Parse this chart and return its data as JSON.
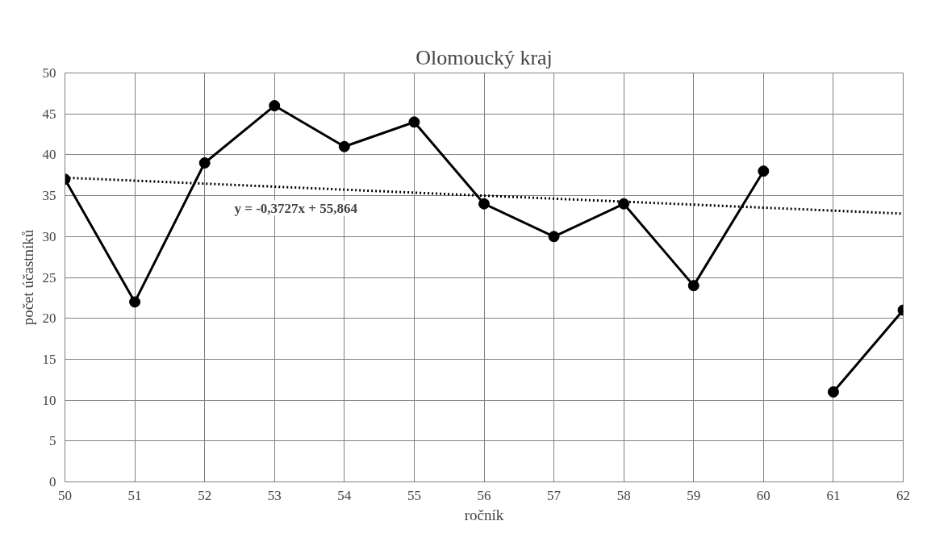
{
  "chart_data": {
    "type": "line",
    "title": "Olomoucký kraj",
    "xlabel": "ročník",
    "ylabel": "počet účastníků",
    "xlim": [
      50,
      62
    ],
    "xticks": [
      50,
      51,
      52,
      53,
      54,
      55,
      56,
      57,
      58,
      59,
      60,
      61,
      62
    ],
    "ylim": [
      0,
      50
    ],
    "yticks": [
      0,
      5,
      10,
      15,
      20,
      25,
      30,
      35,
      40,
      45,
      50
    ],
    "grid": true,
    "marker": "circle",
    "series": [
      {
        "color": "#000000",
        "x": [
          50,
          51,
          52,
          53,
          54,
          55,
          56,
          57,
          58,
          59,
          60
        ],
        "values": [
          37,
          22,
          39,
          46,
          41,
          44,
          34,
          30,
          34,
          24,
          38
        ]
      },
      {
        "color": "#000000",
        "x": [
          61,
          62
        ],
        "values": [
          11,
          21
        ]
      },
      {
        "type": "line",
        "color": "#000000",
        "marker": "none",
        "line_style": "dotted",
        "x": [
          50,
          62
        ],
        "values": [
          37.2,
          32.8
        ]
      }
    ],
    "annotations": [
      "y = -0,3727x + 55,864"
    ]
  }
}
